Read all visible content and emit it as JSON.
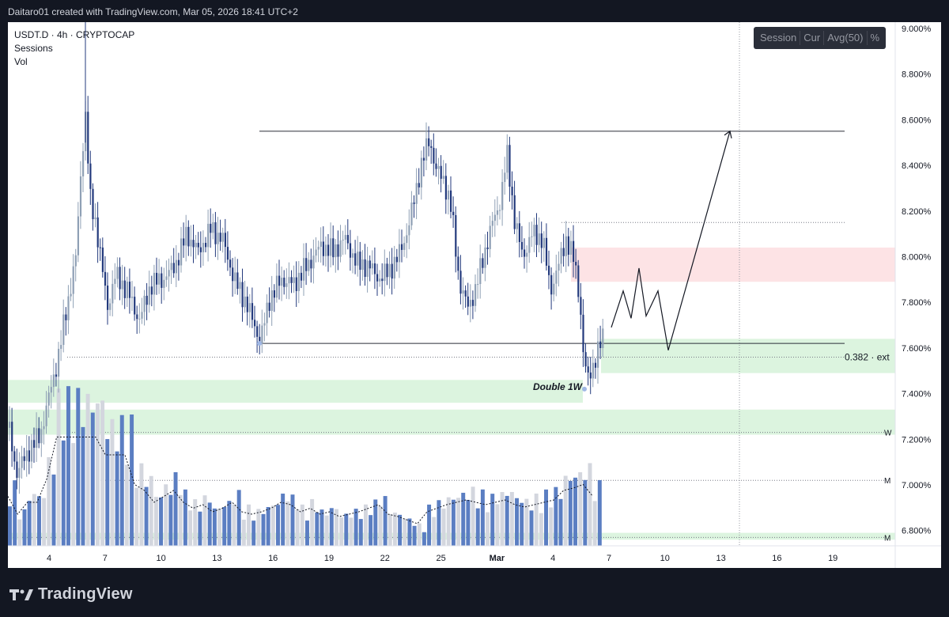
{
  "header": {
    "attribution": "Daitaro01 created with TradingView.com, Mar 05, 2026 18:41 UTC+2"
  },
  "legend": {
    "symbol_line": "USDT.D · 4h · CRYPTOCAP",
    "sessions": "Sessions",
    "vol": "Vol"
  },
  "session_panel": {
    "items": [
      "Session",
      "Cur",
      "Avg(50)",
      "%"
    ]
  },
  "annotations": {
    "double_label": "Double 1W",
    "fib_label": "0.382 · ext",
    "w_label": "W",
    "m_label": "M",
    "m2_label": "M"
  },
  "footer": {
    "logo_text": "TradingView"
  },
  "colors": {
    "bull": "#8fa0b5",
    "bear": "#233a7d",
    "zone_green": "#d8f3dc",
    "zone_red": "#fde0e2",
    "vol_blue": "#5b7ec2",
    "vol_grey": "#d3d6de"
  },
  "chart_data": {
    "type": "candlestick",
    "symbol": "USDT.D",
    "timeframe": "4h",
    "y_ticks": [
      "9.000%",
      "8.800%",
      "8.600%",
      "8.400%",
      "8.200%",
      "8.000%",
      "7.800%",
      "7.600%",
      "7.400%",
      "7.200%",
      "7.000%",
      "6.800%"
    ],
    "ylim": [
      6.76,
      9.05
    ],
    "x_ticks": [
      "4",
      "7",
      "10",
      "13",
      "16",
      "19",
      "22",
      "25",
      "Mar",
      "4",
      "7",
      "10",
      "13",
      "16",
      "19"
    ],
    "price_path": [
      [
        0,
        7.25
      ],
      [
        10,
        7.05
      ],
      [
        25,
        7.15
      ],
      [
        40,
        7.22
      ],
      [
        55,
        7.45
      ],
      [
        62,
        7.55
      ],
      [
        72,
        7.75
      ],
      [
        85,
        8.0
      ],
      [
        92,
        8.42
      ],
      [
        97,
        8.62
      ],
      [
        103,
        8.25
      ],
      [
        110,
        8.15
      ],
      [
        118,
        7.95
      ],
      [
        125,
        7.78
      ],
      [
        135,
        7.92
      ],
      [
        150,
        7.85
      ],
      [
        165,
        7.72
      ],
      [
        180,
        7.88
      ],
      [
        195,
        7.9
      ],
      [
        210,
        7.96
      ],
      [
        225,
        8.1
      ],
      [
        240,
        8.02
      ],
      [
        255,
        8.12
      ],
      [
        270,
        8.08
      ],
      [
        285,
        7.9
      ],
      [
        300,
        7.8
      ],
      [
        318,
        7.63
      ],
      [
        330,
        7.82
      ],
      [
        345,
        7.9
      ],
      [
        360,
        7.88
      ],
      [
        375,
        7.95
      ],
      [
        395,
        8.05
      ],
      [
        410,
        8.02
      ],
      [
        425,
        8.08
      ],
      [
        440,
        7.97
      ],
      [
        455,
        7.96
      ],
      [
        470,
        7.9
      ],
      [
        490,
        7.98
      ],
      [
        505,
        8.12
      ],
      [
        520,
        8.38
      ],
      [
        532,
        8.52
      ],
      [
        540,
        8.38
      ],
      [
        550,
        8.34
      ],
      [
        560,
        8.2
      ],
      [
        570,
        7.88
      ],
      [
        580,
        7.78
      ],
      [
        590,
        7.85
      ],
      [
        600,
        8.0
      ],
      [
        612,
        8.15
      ],
      [
        622,
        8.25
      ],
      [
        630,
        8.45
      ],
      [
        640,
        8.15
      ],
      [
        650,
        8.0
      ],
      [
        662,
        8.1
      ],
      [
        675,
        8.08
      ],
      [
        685,
        7.85
      ],
      [
        695,
        7.96
      ],
      [
        705,
        8.08
      ],
      [
        715,
        7.98
      ],
      [
        722,
        7.82
      ],
      [
        727,
        7.55
      ],
      [
        732,
        7.46
      ],
      [
        738,
        7.52
      ],
      [
        745,
        7.58
      ],
      [
        752,
        7.66
      ]
    ],
    "volume_profile": [
      0.35,
      0.2,
      0.3,
      0.3,
      0.5,
      0.85,
      0.85,
      0.85,
      0.85,
      0.85,
      0.7,
      0.7,
      0.7,
      0.45,
      0.4,
      0.3,
      0.35,
      0.4,
      0.3,
      0.25,
      0.28,
      0.22,
      0.25,
      0.3,
      0.22,
      0.2,
      0.22,
      0.25,
      0.3,
      0.28,
      0.22,
      0.25,
      0.2,
      0.22,
      0.18,
      0.2,
      0.22,
      0.25,
      0.28,
      0.2,
      0.18,
      0.15,
      0.12,
      0.22,
      0.25,
      0.28,
      0.3,
      0.32,
      0.3,
      0.28,
      0.3,
      0.32,
      0.28,
      0.26,
      0.28,
      0.3,
      0.32,
      0.4,
      0.42,
      0.45,
      0.35
    ],
    "horizontal_lines": [
      {
        "price": 8.55,
        "from_x": 318,
        "to_x": 1058,
        "style": "solid"
      },
      {
        "price": 7.62,
        "from_x": 318,
        "to_x": 1058,
        "style": "solid"
      },
      {
        "price": 8.15,
        "from_x": 700,
        "to_x": 1058,
        "style": "dotted"
      },
      {
        "price": 7.56,
        "from_x": 75,
        "to_x": 1058,
        "style": "dotted"
      },
      {
        "price": 7.23,
        "from_x": 75,
        "to_x": 1110,
        "style": "dotted"
      },
      {
        "price": 7.02,
        "from_x": 75,
        "to_x": 1110,
        "style": "dotted"
      },
      {
        "price": 6.77,
        "from_x": 0,
        "to_x": 1110,
        "style": "dotted"
      }
    ],
    "zones": [
      {
        "type": "green",
        "from_price": 7.64,
        "to_price": 7.49,
        "from_x": 750,
        "to_x": 1122
      },
      {
        "type": "green",
        "from_price": 7.46,
        "to_price": 7.36,
        "from_x": 0,
        "to_x": 727
      },
      {
        "type": "green",
        "from_price": 7.33,
        "to_price": 7.22,
        "from_x": 0,
        "to_x": 1122
      },
      {
        "type": "green",
        "from_price": 6.79,
        "to_price": 6.76,
        "from_x": 0,
        "to_x": 1122
      },
      {
        "type": "red",
        "from_price": 8.04,
        "to_price": 7.89,
        "from_x": 712,
        "to_x": 1122
      }
    ],
    "projection_path": [
      [
        763,
        7.69
      ],
      [
        778,
        7.85
      ],
      [
        788,
        7.73
      ],
      [
        798,
        7.95
      ],
      [
        807,
        7.74
      ],
      [
        822,
        7.85
      ],
      [
        835,
        7.59
      ],
      [
        913,
        8.55
      ]
    ]
  }
}
